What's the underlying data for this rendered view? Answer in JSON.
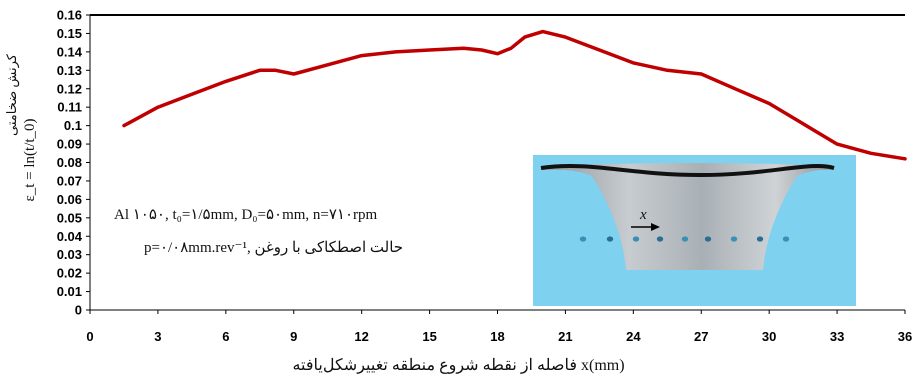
{
  "chart_data": {
    "type": "line",
    "xlabel": "فاصله از نقطه شروع منطقه تغییرشکل‌یافته x(mm)",
    "ylabel_persian": "کرنش ضخامتی",
    "ylabel_formula": "ε_t = ln(t/t_0)",
    "xlim": [
      0,
      36
    ],
    "ylim": [
      0,
      0.16
    ],
    "x_ticks": [
      "0",
      "3",
      "6",
      "9",
      "12",
      "15",
      "18",
      "21",
      "24",
      "27",
      "30",
      "33",
      "36"
    ],
    "y_ticks": [
      "0",
      "0.01",
      "0.02",
      "0.03",
      "0.04",
      "0.05",
      "0.06",
      "0.07",
      "0.08",
      "0.09",
      "0.1",
      "0.11",
      "0.12",
      "0.13",
      "0.14",
      "0.15",
      "0.16"
    ],
    "grid": false,
    "series": [
      {
        "color": "#c00000",
        "x": [
          1.5,
          3,
          4.5,
          6,
          7.5,
          8.2,
          9,
          10.5,
          12,
          13.5,
          15,
          16.5,
          17.3,
          18,
          18.6,
          19.2,
          20,
          21,
          22.5,
          24,
          25.5,
          27,
          28.5,
          30,
          31.5,
          33,
          34.5,
          36
        ],
        "y": [
          0.1,
          0.11,
          0.117,
          0.124,
          0.13,
          0.13,
          0.128,
          0.133,
          0.138,
          0.14,
          0.141,
          0.142,
          0.141,
          0.139,
          0.142,
          0.148,
          0.151,
          0.148,
          0.141,
          0.134,
          0.13,
          0.128,
          0.12,
          0.112,
          0.101,
          0.09,
          0.085,
          0.082
        ]
      }
    ],
    "annotations": {
      "params_line1": "Al ۱۰۵۰, t₀=۱/۵mm, D₀=۵۰mm, n=۷۱۰rpm",
      "params_line2": "p=۰/۰۸mm.rev⁻¹, حالت اصطکاکی با روغن",
      "inset_label": "x"
    }
  },
  "colors": {
    "axis": "#000000",
    "series": "#c00000",
    "inset_bg": "#7ed1ef",
    "inset_part": "#a8aeb3"
  }
}
